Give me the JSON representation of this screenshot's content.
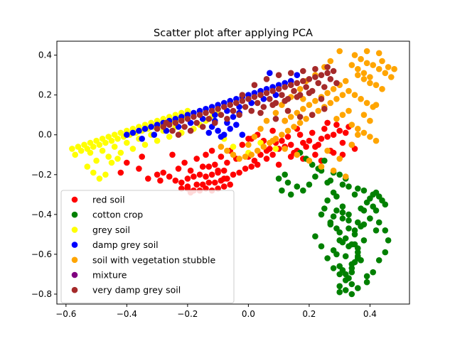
{
  "chart_data": {
    "type": "scatter",
    "title": "Scatter plot after applying PCA",
    "xlabel": "",
    "ylabel": "",
    "xlim": [
      -0.63,
      0.53
    ],
    "ylim": [
      -0.85,
      0.47
    ],
    "xticks": [
      -0.6,
      -0.4,
      -0.2,
      0.0,
      0.2,
      0.4
    ],
    "xtick_labels": [
      "−0.6",
      "−0.4",
      "−0.2",
      "0.0",
      "0.2",
      "0.4"
    ],
    "yticks": [
      -0.8,
      -0.6,
      -0.4,
      -0.2,
      0.0,
      0.2,
      0.4
    ],
    "ytick_labels": [
      "−0.8",
      "−0.6",
      "−0.4",
      "−0.2",
      "0.0",
      "0.2",
      "0.4"
    ],
    "grid": false,
    "legend_position": "lower-left",
    "series": [
      {
        "name": "red soil",
        "color": "#ff0000",
        "x": [
          -0.2,
          -0.18,
          -0.16,
          -0.14,
          -0.12,
          -0.1,
          -0.08,
          -0.06,
          -0.15,
          -0.13,
          -0.11,
          -0.09,
          -0.17,
          -0.07,
          -0.22,
          -0.24,
          -0.2,
          -0.18,
          -0.16,
          -0.14,
          -0.12,
          -0.1,
          -0.08,
          -0.05,
          -0.03,
          -0.01,
          0.01,
          0.03,
          -0.19,
          -0.15,
          -0.11,
          -0.07,
          -0.04,
          -0.26,
          -0.28,
          -0.23,
          -0.21,
          -0.25,
          -0.3,
          -0.29,
          -0.33,
          -0.36,
          -0.4,
          -0.42,
          -0.35,
          0.0,
          0.02,
          0.04,
          0.06,
          0.08,
          0.1,
          0.12,
          0.14,
          0.16,
          0.18,
          0.2,
          0.22,
          0.24,
          0.26,
          0.28,
          0.3,
          0.32,
          0.05,
          0.09,
          0.13,
          0.17,
          0.21,
          0.25,
          0.29,
          0.33,
          0.07,
          0.11,
          0.15,
          0.19,
          0.23,
          0.27,
          0.31,
          0.35,
          -0.02,
          0.0,
          0.03,
          -0.06,
          -0.09,
          -0.13,
          0.1,
          0.06,
          0.01,
          0.14,
          0.18,
          0.22,
          0.24,
          0.28,
          0.31,
          0.34,
          0.26,
          0.16,
          0.12,
          0.08,
          -0.17,
          -0.12,
          -0.1,
          -0.14,
          -0.2,
          -0.08,
          -0.22,
          -0.19
        ],
        "y": [
          -0.27,
          -0.28,
          -0.28,
          -0.27,
          -0.28,
          -0.27,
          -0.26,
          -0.25,
          -0.25,
          -0.24,
          -0.24,
          -0.23,
          -0.25,
          -0.22,
          -0.24,
          -0.23,
          -0.22,
          -0.21,
          -0.2,
          -0.21,
          -0.2,
          -0.19,
          -0.18,
          -0.2,
          -0.19,
          -0.17,
          -0.16,
          -0.15,
          -0.18,
          -0.16,
          -0.15,
          -0.14,
          -0.12,
          -0.21,
          -0.19,
          -0.17,
          -0.14,
          -0.1,
          -0.2,
          -0.23,
          -0.22,
          -0.17,
          -0.14,
          -0.19,
          -0.11,
          -0.11,
          -0.13,
          -0.1,
          -0.08,
          -0.1,
          -0.07,
          -0.06,
          -0.05,
          -0.08,
          -0.04,
          -0.03,
          -0.06,
          -0.02,
          -0.01,
          0.0,
          0.02,
          0.01,
          -0.03,
          -0.04,
          -0.01,
          0.0,
          0.01,
          0.03,
          0.05,
          0.04,
          -0.07,
          -0.03,
          -0.09,
          -0.06,
          -0.05,
          -0.08,
          -0.04,
          -0.07,
          -0.05,
          -0.02,
          0.0,
          -0.08,
          -0.11,
          -0.16,
          -0.15,
          -0.12,
          -0.02,
          -0.11,
          -0.12,
          -0.1,
          -0.13,
          -0.09,
          -0.1,
          -0.05,
          0.06,
          0.03,
          0.07,
          0.02,
          -0.12,
          -0.08,
          -0.18,
          -0.1,
          -0.26,
          -0.22,
          -0.27,
          -0.29
        ]
      },
      {
        "name": "cotton crop",
        "color": "#008000",
        "x": [
          0.34,
          0.33,
          0.32,
          0.31,
          0.3,
          0.35,
          0.36,
          0.29,
          0.28,
          0.33,
          0.34,
          0.31,
          0.32,
          0.35,
          0.3,
          0.29,
          0.37,
          0.38,
          0.36,
          0.33,
          0.31,
          0.28,
          0.27,
          0.3,
          0.32,
          0.34,
          0.36,
          0.35,
          0.33,
          0.29,
          0.31,
          0.37,
          0.39,
          0.4,
          0.41,
          0.42,
          0.43,
          0.44,
          0.45,
          0.38,
          0.36,
          0.33,
          0.31,
          0.28,
          0.26,
          0.25,
          0.24,
          0.27,
          0.3,
          0.34,
          0.36,
          0.39,
          0.41,
          0.43,
          0.45,
          0.46,
          0.42,
          0.4,
          0.38,
          0.35,
          0.32,
          0.3,
          0.28,
          0.26,
          0.24,
          0.22,
          0.2,
          0.18,
          0.16,
          0.14,
          0.13,
          0.12,
          0.11,
          0.1,
          0.21,
          0.19,
          0.17,
          0.23,
          0.25,
          0.27,
          0.29,
          0.31,
          0.33,
          0.35,
          0.37,
          0.39,
          0.41,
          0.43,
          0.45,
          0.22,
          0.24,
          0.26,
          0.28,
          0.3,
          0.32,
          0.34,
          0.36,
          0.38,
          0.4,
          0.42,
          0.3,
          0.32,
          0.34,
          0.36
        ],
        "y": [
          -0.75,
          -0.72,
          -0.7,
          -0.68,
          -0.66,
          -0.64,
          -0.62,
          -0.6,
          -0.58,
          -0.56,
          -0.55,
          -0.54,
          -0.52,
          -0.5,
          -0.49,
          -0.47,
          -0.46,
          -0.45,
          -0.44,
          -0.43,
          -0.42,
          -0.41,
          -0.44,
          -0.53,
          -0.61,
          -0.67,
          -0.57,
          -0.48,
          -0.4,
          -0.38,
          -0.36,
          -0.37,
          -0.34,
          -0.32,
          -0.3,
          -0.29,
          -0.31,
          -0.33,
          -0.35,
          -0.28,
          -0.27,
          -0.26,
          -0.25,
          -0.29,
          -0.33,
          -0.37,
          -0.4,
          -0.45,
          -0.79,
          -0.8,
          -0.77,
          -0.74,
          -0.69,
          -0.63,
          -0.59,
          -0.53,
          -0.48,
          -0.42,
          -0.38,
          -0.3,
          -0.22,
          -0.2,
          -0.19,
          -0.24,
          -0.18,
          -0.21,
          -0.25,
          -0.28,
          -0.26,
          -0.3,
          -0.24,
          -0.2,
          -0.28,
          -0.22,
          -0.15,
          -0.12,
          -0.09,
          -0.17,
          -0.13,
          -0.23,
          -0.31,
          -0.39,
          -0.47,
          -0.55,
          -0.63,
          -0.71,
          -0.36,
          -0.44,
          -0.48,
          -0.51,
          -0.56,
          -0.62,
          -0.67,
          -0.7,
          -0.73,
          -0.65,
          -0.59,
          -0.53,
          -0.42,
          -0.38,
          -0.76,
          -0.78,
          -0.69,
          -0.61
        ]
      },
      {
        "name": "grey soil",
        "color": "#ffff00",
        "x": [
          -0.58,
          -0.56,
          -0.54,
          -0.52,
          -0.5,
          -0.48,
          -0.46,
          -0.44,
          -0.42,
          -0.4,
          -0.38,
          -0.36,
          -0.34,
          -0.32,
          -0.3,
          -0.28,
          -0.26,
          -0.24,
          -0.22,
          -0.2,
          -0.55,
          -0.53,
          -0.51,
          -0.49,
          -0.47,
          -0.45,
          -0.43,
          -0.41,
          -0.39,
          -0.37,
          -0.35,
          -0.33,
          -0.31,
          -0.29,
          -0.27,
          -0.25,
          -0.23,
          -0.21,
          -0.57,
          -0.52,
          -0.48,
          -0.44,
          -0.4,
          -0.36,
          -0.32,
          -0.28,
          -0.24,
          -0.5,
          -0.46,
          -0.42,
          -0.38,
          -0.34,
          -0.3,
          -0.26,
          -0.22,
          -0.18,
          -0.16,
          -0.14,
          -0.12,
          -0.1,
          -0.53,
          -0.51,
          -0.49,
          -0.47,
          -0.45,
          -0.43,
          -0.05,
          0.0,
          0.04,
          0.09,
          -0.08
        ],
        "y": [
          -0.07,
          -0.06,
          -0.05,
          -0.04,
          -0.03,
          -0.02,
          -0.01,
          0.0,
          0.01,
          0.02,
          0.03,
          0.04,
          0.05,
          0.06,
          0.07,
          0.08,
          0.09,
          0.1,
          0.11,
          0.12,
          -0.08,
          -0.07,
          -0.06,
          -0.05,
          -0.04,
          -0.03,
          -0.02,
          -0.01,
          0.0,
          0.01,
          0.02,
          0.03,
          0.04,
          0.05,
          0.06,
          0.07,
          0.08,
          0.09,
          -0.1,
          -0.09,
          -0.08,
          -0.06,
          -0.04,
          -0.02,
          0.0,
          0.02,
          0.04,
          -0.13,
          -0.11,
          -0.09,
          -0.07,
          -0.05,
          -0.03,
          -0.01,
          0.01,
          0.03,
          0.05,
          0.07,
          0.09,
          0.11,
          -0.16,
          -0.19,
          -0.22,
          -0.2,
          -0.14,
          -0.12,
          -0.06,
          -0.09,
          -0.04,
          -0.07,
          -0.02
        ]
      },
      {
        "name": "damp grey soil",
        "color": "#0000ff",
        "x": [
          -0.4,
          -0.38,
          -0.36,
          -0.34,
          -0.32,
          -0.3,
          -0.28,
          -0.26,
          -0.24,
          -0.22,
          -0.2,
          -0.18,
          -0.16,
          -0.14,
          -0.12,
          -0.1,
          -0.08,
          -0.06,
          -0.04,
          -0.02,
          0.0,
          0.02,
          0.04,
          0.06,
          0.08,
          0.1,
          0.12,
          0.14,
          -0.35,
          -0.31,
          -0.27,
          -0.23,
          -0.19,
          -0.15,
          -0.11,
          -0.07,
          -0.03,
          0.01,
          0.05,
          0.09,
          -0.12,
          -0.1,
          -0.08,
          -0.06,
          -0.04,
          -0.09,
          -0.07,
          -0.05,
          -0.11,
          -0.13,
          -0.03,
          -0.02,
          0.07,
          0.16
        ],
        "y": [
          0.0,
          0.01,
          0.02,
          0.03,
          0.04,
          0.05,
          0.06,
          0.07,
          0.08,
          0.09,
          0.1,
          0.11,
          0.12,
          0.13,
          0.14,
          0.15,
          0.16,
          0.17,
          0.18,
          0.19,
          0.2,
          0.21,
          0.22,
          0.23,
          0.24,
          0.25,
          0.26,
          0.27,
          -0.02,
          0.0,
          0.02,
          0.04,
          0.06,
          0.08,
          0.1,
          0.12,
          0.14,
          0.16,
          0.18,
          0.2,
          0.04,
          0.02,
          0.0,
          0.03,
          0.05,
          -0.01,
          0.06,
          0.09,
          0.07,
          0.01,
          0.11,
          0.0,
          0.31,
          0.3
        ]
      },
      {
        "name": "soil with vegetation stubble",
        "color": "#ffa500",
        "x": [
          0.35,
          0.37,
          0.39,
          0.41,
          0.43,
          0.45,
          0.36,
          0.38,
          0.4,
          0.42,
          0.44,
          0.33,
          0.31,
          0.29,
          0.27,
          0.25,
          0.23,
          0.21,
          0.19,
          0.17,
          0.15,
          0.13,
          0.11,
          0.09,
          0.07,
          0.05,
          0.03,
          0.01,
          -0.01,
          -0.03,
          -0.05,
          -0.07,
          -0.09,
          0.34,
          0.36,
          0.38,
          0.4,
          0.32,
          0.3,
          0.28,
          0.26,
          0.24,
          0.22,
          0.2,
          0.18,
          0.16,
          0.14,
          0.12,
          0.35,
          0.37,
          0.39,
          0.41,
          0.33,
          0.31,
          0.29,
          0.34,
          0.36,
          0.38,
          0.4,
          0.42,
          0.44,
          0.46,
          0.48,
          0.47,
          0.43,
          0.39,
          0.3,
          0.27,
          0.25,
          0.22,
          0.19,
          0.17,
          0.14,
          0.11,
          0.09,
          0.06,
          0.04,
          0.02,
          0.0,
          0.08,
          0.12,
          0.16,
          0.2,
          0.24,
          0.28,
          0.32,
          0.36,
          0.4,
          0.26,
          0.3,
          0.34,
          0.38,
          0.42,
          0.18
        ],
        "y": [
          0.4,
          0.38,
          0.36,
          0.35,
          0.33,
          0.31,
          0.3,
          0.28,
          0.26,
          0.25,
          0.23,
          0.22,
          0.2,
          0.18,
          0.16,
          0.14,
          0.12,
          0.1,
          0.08,
          0.06,
          0.04,
          0.02,
          0.0,
          -0.02,
          -0.04,
          -0.06,
          -0.08,
          -0.1,
          -0.11,
          -0.12,
          -0.1,
          -0.08,
          -0.06,
          0.35,
          0.33,
          0.31,
          0.29,
          0.27,
          0.25,
          0.23,
          0.21,
          0.19,
          0.17,
          0.15,
          0.13,
          0.11,
          0.09,
          0.07,
          0.2,
          0.18,
          0.16,
          0.14,
          0.12,
          0.1,
          0.08,
          0.05,
          0.03,
          0.01,
          -0.01,
          -0.03,
          0.37,
          0.34,
          0.33,
          0.29,
          0.41,
          0.42,
          0.42,
          0.37,
          0.34,
          0.3,
          0.27,
          0.23,
          0.19,
          0.15,
          0.11,
          0.07,
          0.03,
          -0.01,
          -0.05,
          -0.03,
          -0.07,
          -0.1,
          -0.13,
          -0.16,
          -0.18,
          -0.21,
          0.0,
          0.07,
          -0.08,
          -0.12,
          -0.05,
          0.1,
          0.15,
          0.18
        ]
      },
      {
        "name": "mixture",
        "color": "#800080",
        "x": [],
        "y": []
      },
      {
        "name": "very damp grey soil",
        "color": "#a52a2a",
        "x": [
          -0.28,
          -0.26,
          -0.24,
          -0.22,
          -0.2,
          -0.18,
          -0.16,
          -0.14,
          -0.12,
          -0.1,
          -0.08,
          -0.06,
          -0.04,
          -0.02,
          0.0,
          0.02,
          0.04,
          0.06,
          0.08,
          0.1,
          0.12,
          0.14,
          0.16,
          0.18,
          0.2,
          0.22,
          0.24,
          0.26,
          0.28,
          -0.25,
          -0.21,
          -0.17,
          -0.13,
          -0.09,
          -0.05,
          -0.01,
          0.03,
          0.07,
          0.11,
          0.15,
          0.19,
          0.23,
          0.27,
          -0.23,
          -0.19,
          -0.15,
          -0.11,
          -0.07,
          -0.03,
          0.01,
          0.05,
          0.09,
          0.13,
          0.17,
          0.21,
          0.25,
          0.29,
          0.06,
          0.1,
          0.14,
          0.18,
          0.22,
          0.26,
          0.02,
          -0.02,
          0.04,
          0.08,
          0.12,
          0.16,
          0.2,
          0.24,
          -0.3,
          -0.27,
          0.25,
          0.21,
          0.17,
          0.13,
          0.09
        ],
        "y": [
          0.04,
          0.05,
          0.06,
          0.07,
          0.08,
          0.09,
          0.1,
          0.11,
          0.12,
          0.13,
          0.14,
          0.15,
          0.16,
          0.17,
          0.18,
          0.19,
          0.2,
          0.21,
          0.22,
          0.23,
          0.24,
          0.25,
          0.26,
          0.27,
          0.28,
          0.29,
          0.3,
          0.31,
          0.32,
          0.02,
          0.04,
          0.06,
          0.08,
          0.1,
          0.12,
          0.14,
          0.16,
          0.18,
          0.2,
          0.22,
          0.24,
          0.26,
          0.28,
          0.0,
          0.02,
          0.04,
          0.06,
          0.08,
          0.1,
          0.12,
          0.14,
          0.16,
          0.18,
          0.2,
          0.22,
          0.24,
          0.26,
          0.28,
          0.3,
          0.31,
          0.32,
          0.33,
          0.34,
          0.25,
          0.2,
          0.11,
          0.15,
          0.17,
          0.19,
          0.21,
          0.18,
          0.03,
          0.06,
          0.13,
          0.1,
          0.09,
          0.12,
          0.08
        ]
      }
    ]
  }
}
